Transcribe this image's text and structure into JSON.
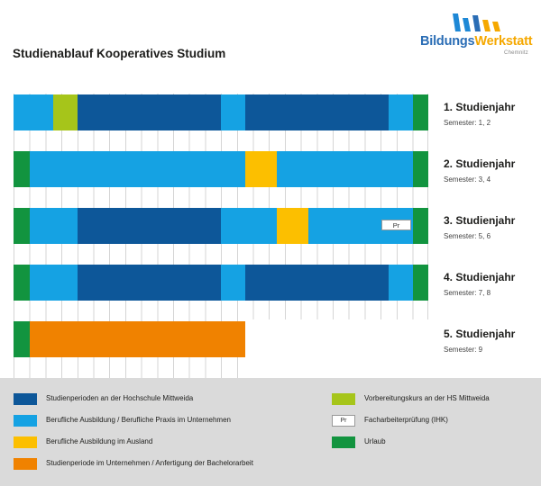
{
  "title": "Studienablauf Kooperatives Studium",
  "logo": {
    "word1": "Bildungs",
    "word2": "Werkstatt",
    "sub": "Chemnitz"
  },
  "colors": {
    "dark": "#0d5799",
    "light": "#15a2e3",
    "lime": "#a6c51a",
    "yellow": "#fcbf00",
    "orange": "#f08200",
    "green": "#12943f"
  },
  "years": [
    {
      "label": "1. Studienjahr",
      "semesters": "Semester: 1, 2"
    },
    {
      "label": "2. Studienjahr",
      "semesters": "Semester: 3, 4"
    },
    {
      "label": "3. Studienjahr",
      "semesters": "Semester: 5, 6",
      "tag": "Pr"
    },
    {
      "label": "4. Studienjahr",
      "semesters": "Semester: 7, 8"
    },
    {
      "label": "5. Studienjahr",
      "semesters": "Semester: 9"
    }
  ],
  "legend": [
    {
      "text": "Studienperioden an der Hochschule Mittweida"
    },
    {
      "text": "Berufliche Ausbildung / Berufliche Praxis im Unternehmen"
    },
    {
      "text": "Berufliche Ausbildung im Ausland"
    },
    {
      "text": "Studienperiode im Unternehmen / Anfertigung der Bachelorarbeit"
    },
    {
      "text": "Vorbereitungskurs an der HS Mittweida"
    },
    {
      "text": "Facharbeiterprüfung (IHK)",
      "swatch_label": "Pr"
    },
    {
      "text": "Urlaub"
    }
  ]
}
